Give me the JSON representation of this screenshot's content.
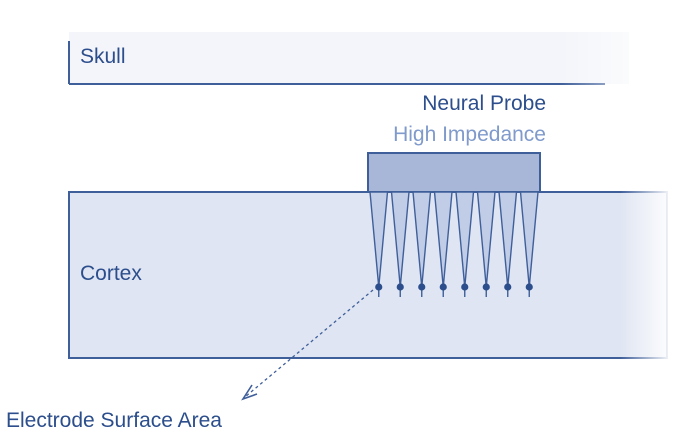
{
  "labels": {
    "skull": "Skull",
    "neural_probe": "Neural Probe",
    "high_impedance": "High Impedance",
    "cortex": "Cortex",
    "electrode_surface_area": "Electrode Surface Area"
  },
  "probe": {
    "shank_count": 8
  },
  "colors": {
    "outline": "#3f5f9a",
    "text_dark": "#2c4e8c",
    "text_light": "#7f9acb",
    "skull_fill": "#f3f5fa",
    "cortex_fill": "#dfe5f2",
    "probe_fill": "#a8b7d8",
    "shank_fill": "#c1cce6"
  }
}
